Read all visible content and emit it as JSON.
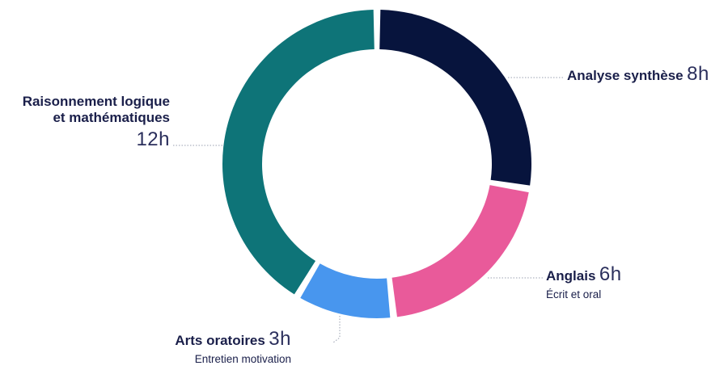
{
  "chart_data": {
    "type": "pie",
    "unit": "h",
    "slices": [
      {
        "label": "Analyse synthèse",
        "value": 8,
        "value_text": "8h",
        "sublabel": "",
        "color": "#07143d"
      },
      {
        "label": "Anglais",
        "value": 6,
        "value_text": "6h",
        "sublabel": "Écrit et oral",
        "color": "#e95a9a"
      },
      {
        "label": "Arts oratoires",
        "value": 3,
        "value_text": "3h",
        "sublabel": "Entretien motivation",
        "color": "#4896ee"
      },
      {
        "label": "Raisonnement logique et mathématiques",
        "value": 12,
        "value_text": "12h",
        "sublabel": "",
        "color": "#0e7478"
      }
    ]
  },
  "labels": {
    "analyse": {
      "name": "Analyse synthèse",
      "hours": "8h"
    },
    "anglais": {
      "name": "Anglais",
      "hours": "6h",
      "sub": "Écrit et oral"
    },
    "arts": {
      "name": "Arts oratoires",
      "hours": "3h",
      "sub": "Entretien motivation"
    },
    "raisonnement": {
      "name_line1": "Raisonnement logique",
      "name_line2": "et mathématiques",
      "hours": "12h"
    }
  }
}
